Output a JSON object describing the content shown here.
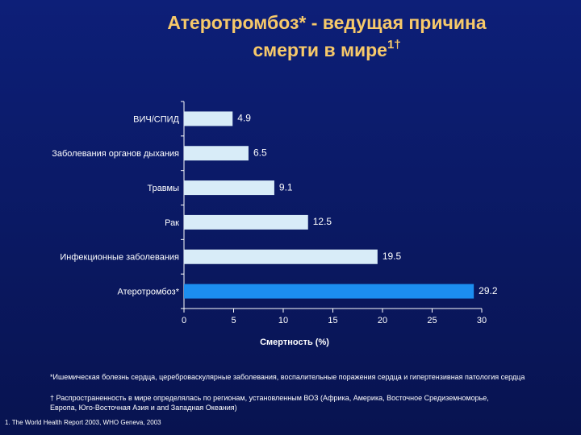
{
  "chart_data": {
    "type": "bar",
    "orientation": "horizontal",
    "title": [
      "Атеротромбоз* - ведущая причина",
      "смерти в мире"
    ],
    "title_superscript": "1†",
    "categories": [
      "ВИЧ/СПИД",
      "Заболевания органов дыхания",
      "Травмы",
      "Рак",
      "Инфекционные заболевания",
      "Атеротромбоз*"
    ],
    "values": [
      4.9,
      6.5,
      9.1,
      12.5,
      19.5,
      29.2
    ],
    "colors": [
      "#d8ecf8",
      "#d8ecf8",
      "#d8ecf8",
      "#d8ecf8",
      "#d8ecf8",
      "#1c8ef0"
    ],
    "x_label": "Смертность (%)",
    "xlim": [
      0,
      30
    ],
    "xticks": [
      0,
      5,
      10,
      15,
      20,
      25,
      30
    ],
    "grid": false
  },
  "footnotes": [
    "*Ишемическая болезнь сердца, цереброваскулярные заболевания, воспалительные поражения сердца и гипертензивная патология сердца",
    "† Распространенность в мире определялась по регионам, установленным ВОЗ (Африка, Америка, Восточное Средиземноморье, Европа, Юго-Восточная Азия и  and Западная Океания)"
  ],
  "source": "1. The World Health Report 2003, WHO Geneva, 2003"
}
